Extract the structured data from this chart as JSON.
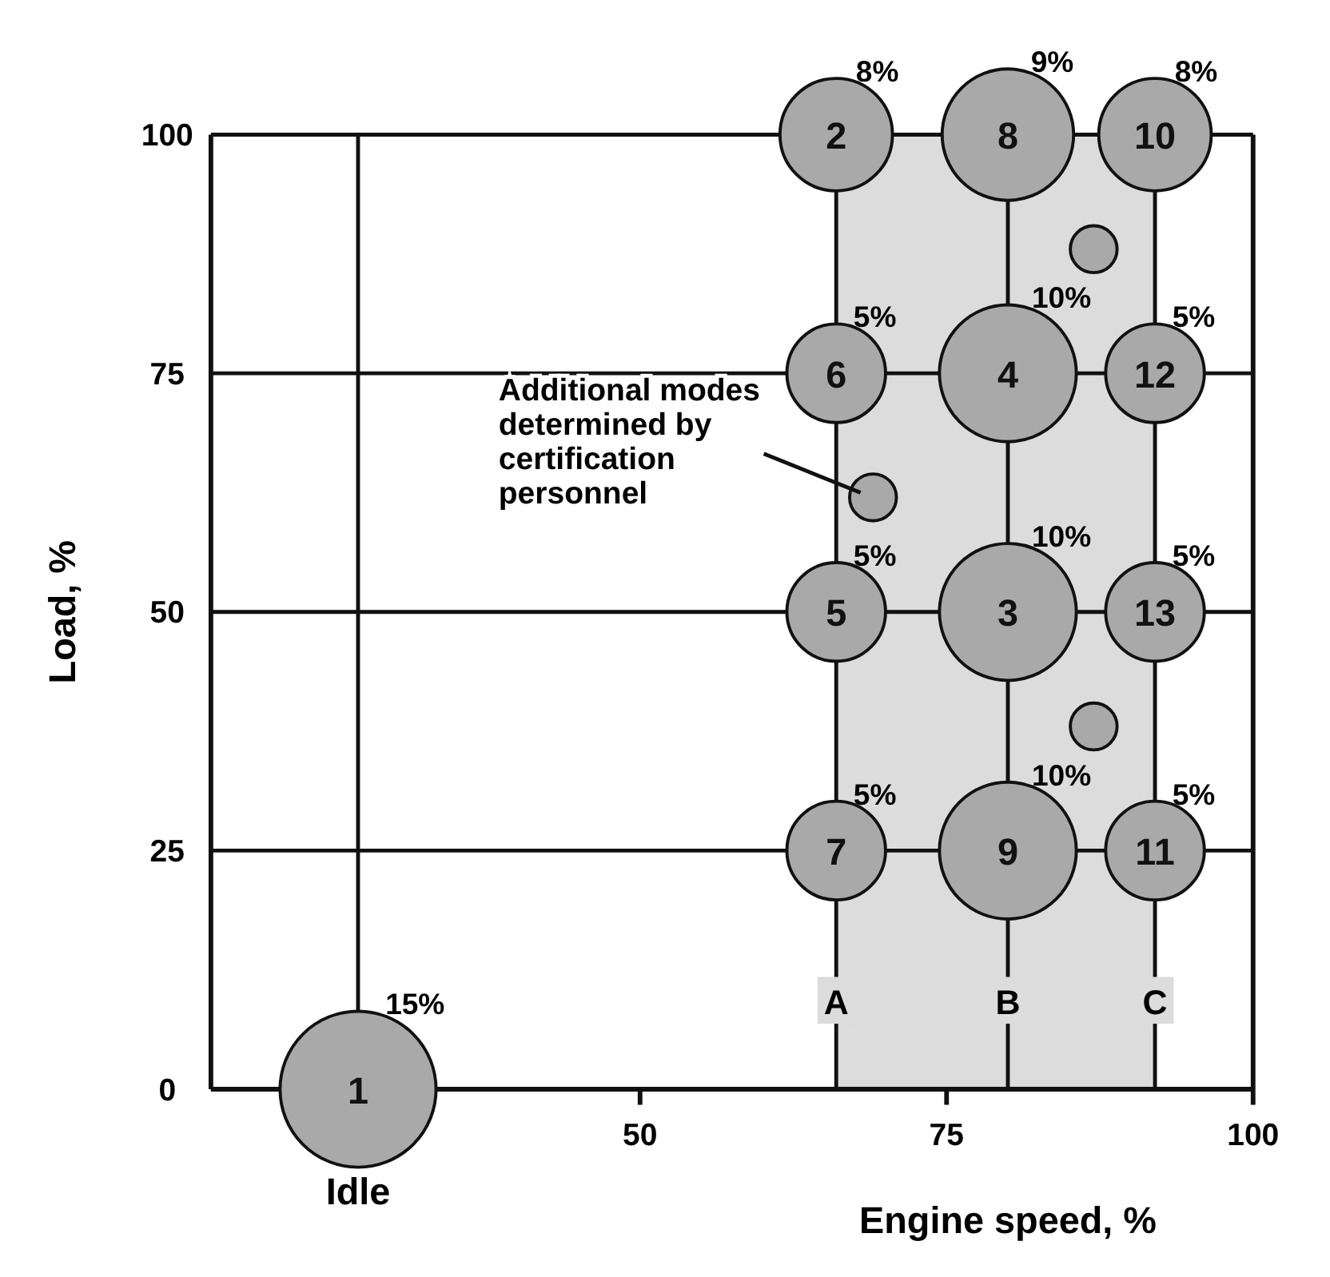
{
  "chart_data": {
    "type": "bubble",
    "xlabel": "Engine speed, %",
    "ylabel": "Load, %",
    "xlim": [
      15,
      100
    ],
    "ylim": [
      0,
      100
    ],
    "xticks": [
      50,
      75,
      100
    ],
    "yticks": [
      0,
      25,
      50,
      75,
      100
    ],
    "grid": "y",
    "marker": "circle",
    "series": [
      {
        "color": "#a9a9a9",
        "x": [
          27,
          66,
          80,
          80,
          66,
          66,
          66,
          80,
          80,
          92,
          92,
          92,
          92
        ],
        "values": [
          0,
          100,
          50,
          75,
          50,
          75,
          25,
          100,
          25,
          100,
          25,
          75,
          50
        ],
        "sizes": [
          1,
          0.52,
          0.77,
          0.77,
          0.4,
          0.4,
          0.4,
          0.71,
          0.77,
          0.52,
          0.4,
          0.4,
          0.4
        ]
      },
      {
        "color": "#a9a9a9",
        "x": [
          87,
          69,
          87
        ],
        "values": [
          88,
          62,
          38
        ],
        "sizes": [
          0.09,
          0.09,
          0.09
        ]
      }
    ],
    "ref_lines": [
      {
        "axis": "x",
        "value": 27,
        "label": "Idle"
      },
      {
        "axis": "x",
        "value": 66,
        "label": "A"
      },
      {
        "axis": "x",
        "value": 80,
        "label": "B"
      },
      {
        "axis": "x",
        "value": 92,
        "label": "C"
      }
    ],
    "bands": [
      {
        "axis": "x",
        "from": 66,
        "to": 92,
        "color": "#dcdcdc"
      }
    ],
    "annotations": [
      {
        "text": "1",
        "x": 27,
        "y": 0
      },
      {
        "text": "2",
        "x": 66,
        "y": 100
      },
      {
        "text": "3",
        "x": 80,
        "y": 50
      },
      {
        "text": "4",
        "x": 80,
        "y": 75
      },
      {
        "text": "5",
        "x": 66,
        "y": 50
      },
      {
        "text": "6",
        "x": 66,
        "y": 75
      },
      {
        "text": "7",
        "x": 66,
        "y": 25
      },
      {
        "text": "8",
        "x": 80,
        "y": 100
      },
      {
        "text": "9",
        "x": 80,
        "y": 25
      },
      {
        "text": "10",
        "x": 92,
        "y": 100
      },
      {
        "text": "11",
        "x": 92,
        "y": 25
      },
      {
        "text": "12",
        "x": 92,
        "y": 75
      },
      {
        "text": "13",
        "x": 92,
        "y": 50
      },
      {
        "text": "15%",
        "x": 27,
        "y": 0
      },
      {
        "text": "8%",
        "x": 66,
        "y": 100
      },
      {
        "text": "9%",
        "x": 80,
        "y": 100
      },
      {
        "text": "8%",
        "x": 92,
        "y": 100
      },
      {
        "text": "5%",
        "x": 66,
        "y": 75
      },
      {
        "text": "10%",
        "x": 80,
        "y": 75
      },
      {
        "text": "5%",
        "x": 92,
        "y": 75
      },
      {
        "text": "5%",
        "x": 66,
        "y": 50
      },
      {
        "text": "10%",
        "x": 80,
        "y": 50
      },
      {
        "text": "5%",
        "x": 92,
        "y": 50
      },
      {
        "text": "5%",
        "x": 66,
        "y": 25
      },
      {
        "text": "10%",
        "x": 80,
        "y": 25
      },
      {
        "text": "5%",
        "x": 92,
        "y": 25
      },
      {
        "text": "Additional modes\ndetermined by\ncertification\npersonnel",
        "x": 69,
        "y": 62
      }
    ]
  }
}
